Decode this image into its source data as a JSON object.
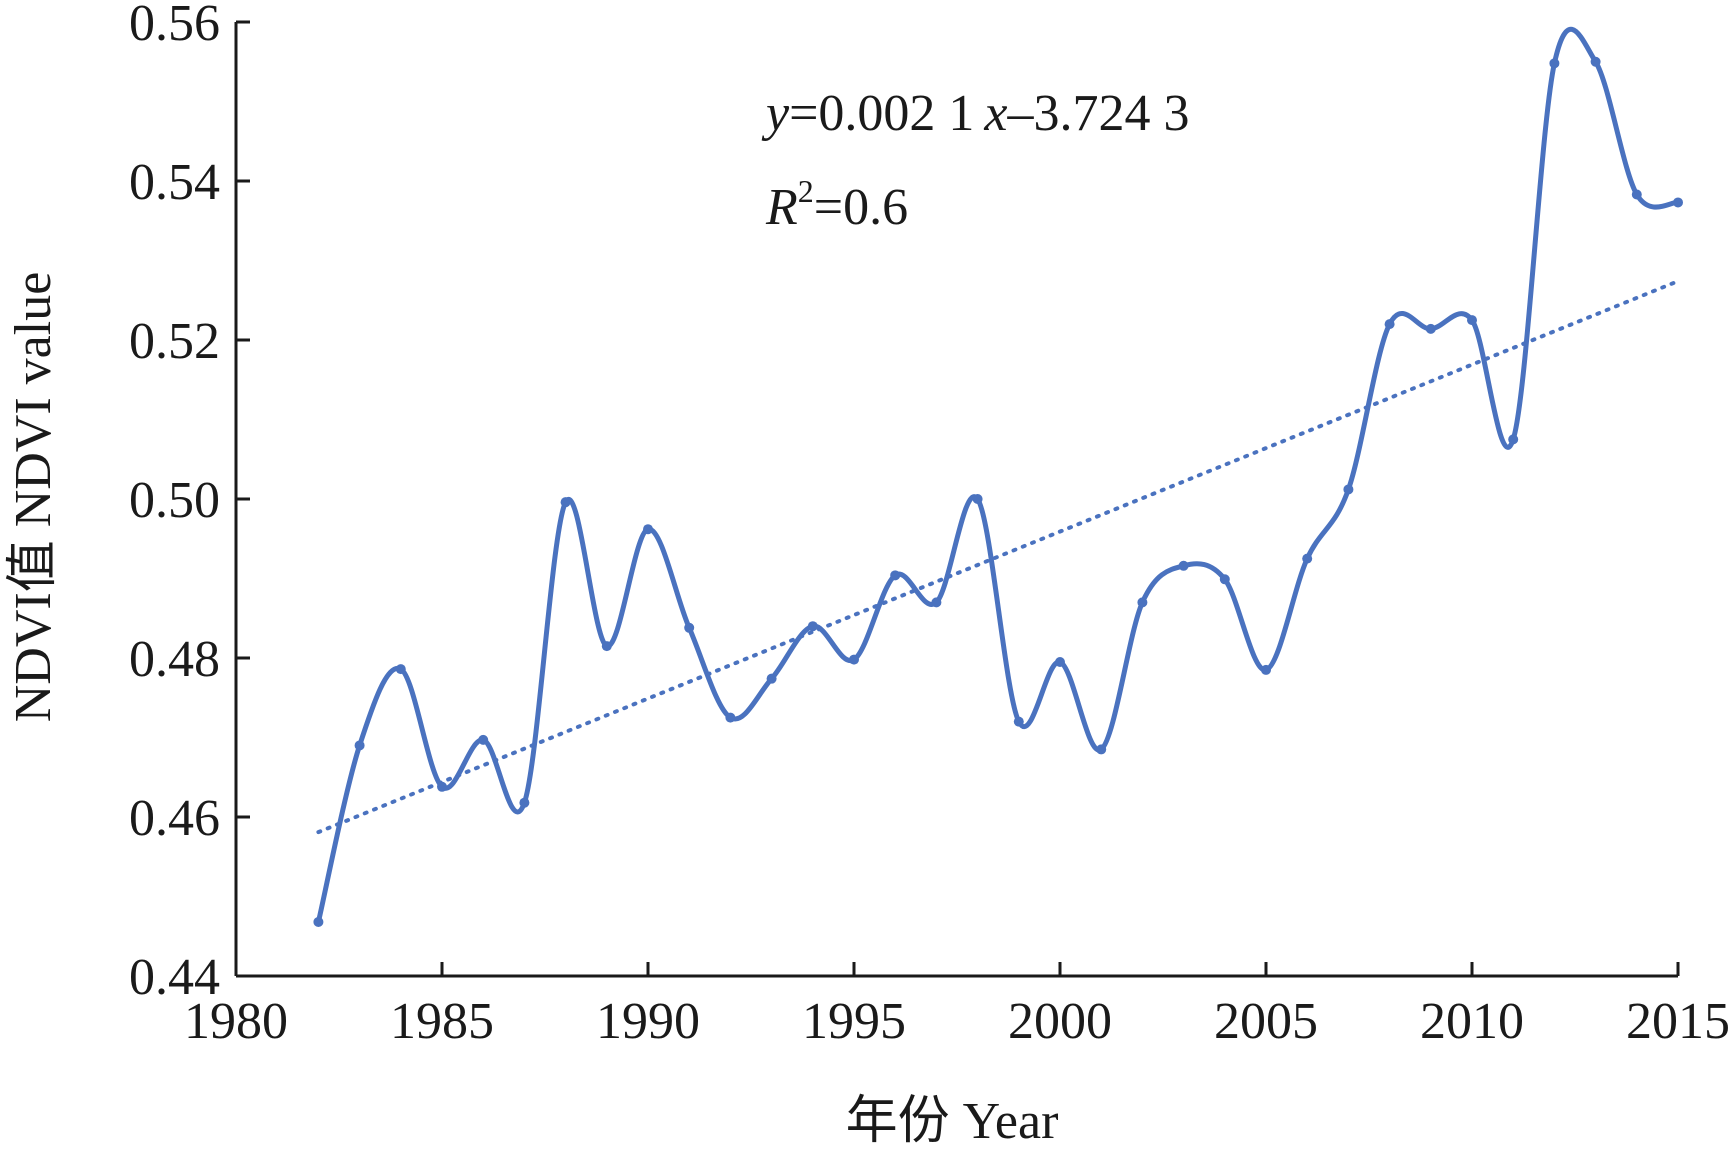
{
  "chart_data": {
    "type": "line",
    "xlabel": "年份 Year",
    "ylabel": "NDVI值 NDVI value",
    "xlim": [
      1980,
      2015
    ],
    "ylim": [
      0.44,
      0.56
    ],
    "x_ticks": [
      "1980",
      "1985",
      "1990",
      "1995",
      "2000",
      "2005",
      "2010",
      "2015"
    ],
    "y_ticks": [
      "0.44",
      "0.46",
      "0.48",
      "0.50",
      "0.52",
      "0.54",
      "0.56"
    ],
    "grid": false,
    "series": [
      {
        "color": "#4a72bf",
        "x": [
          1982,
          1983,
          1984,
          1985,
          1986,
          1987,
          1988,
          1989,
          1990,
          1991,
          1992,
          1993,
          1994,
          1995,
          1996,
          1997,
          1998,
          1999,
          2000,
          2001,
          2002,
          2003,
          2004,
          2005,
          2006,
          2007,
          2008,
          2009,
          2010,
          2011,
          2012,
          2013,
          2014,
          2015
        ],
        "values": [
          0.4468,
          0.469,
          0.4786,
          0.4638,
          0.4697,
          0.4618,
          0.4996,
          0.4815,
          0.4962,
          0.4838,
          0.4725,
          0.4774,
          0.484,
          0.4798,
          0.4904,
          0.487,
          0.5,
          0.472,
          0.4795,
          0.4685,
          0.487,
          0.4916,
          0.4899,
          0.4785,
          0.4925,
          0.5012,
          0.522,
          0.5214,
          0.5225,
          0.5075,
          0.5548,
          0.555,
          0.5383,
          0.5373
        ]
      }
    ],
    "trendline": {
      "style": "dotted",
      "x": [
        1982,
        2015
      ],
      "y": [
        0.4581,
        0.5274
      ]
    },
    "annotation": {
      "equation_var": "y",
      "equation_mid": "=0.002 1",
      "equation_x": "x",
      "equation_rest": "–3.724 3",
      "r2_var": "R",
      "r2_sup": "2",
      "r2_rest": "=0.6"
    }
  }
}
